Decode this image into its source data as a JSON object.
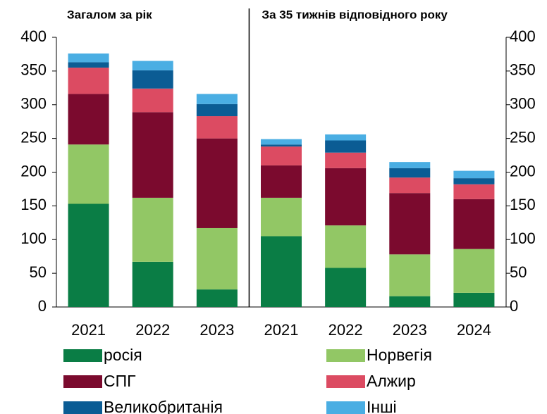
{
  "chart_data": {
    "type": "stacked_bar",
    "groups": [
      {
        "title": "Загалом за рік",
        "size": 3
      },
      {
        "title": "За 35 тижнів відповідного року",
        "size": 4
      }
    ],
    "categories": [
      "2021",
      "2022",
      "2023",
      "2021",
      "2022",
      "2023",
      "2024"
    ],
    "series": [
      {
        "name": "росія",
        "color": "#0a7d45",
        "values": [
          153,
          67,
          26,
          105,
          58,
          16,
          21
        ]
      },
      {
        "name": "Норвегія",
        "color": "#92c765",
        "values": [
          88,
          95,
          91,
          57,
          63,
          62,
          65
        ]
      },
      {
        "name": "СПГ",
        "color": "#7b0a2e",
        "values": [
          75,
          127,
          133,
          48,
          85,
          91,
          74
        ]
      },
      {
        "name": "Алжир",
        "color": "#dc4b62",
        "values": [
          39,
          35,
          33,
          28,
          23,
          23,
          22
        ]
      },
      {
        "name": "Великобританія",
        "color": "#0b5c94",
        "values": [
          8,
          27,
          18,
          3,
          18,
          14,
          9
        ]
      },
      {
        "name": "Інші",
        "color": "#4aaee3",
        "values": [
          13,
          14,
          15,
          8,
          9,
          9,
          11
        ]
      }
    ],
    "ylim": [
      0,
      400
    ],
    "yticks": [
      0,
      50,
      100,
      150,
      200,
      250,
      300,
      350,
      400
    ],
    "y2lim": [
      0,
      400
    ],
    "y2ticks": [
      0,
      50,
      100,
      150,
      200,
      250,
      300,
      350,
      400
    ]
  }
}
